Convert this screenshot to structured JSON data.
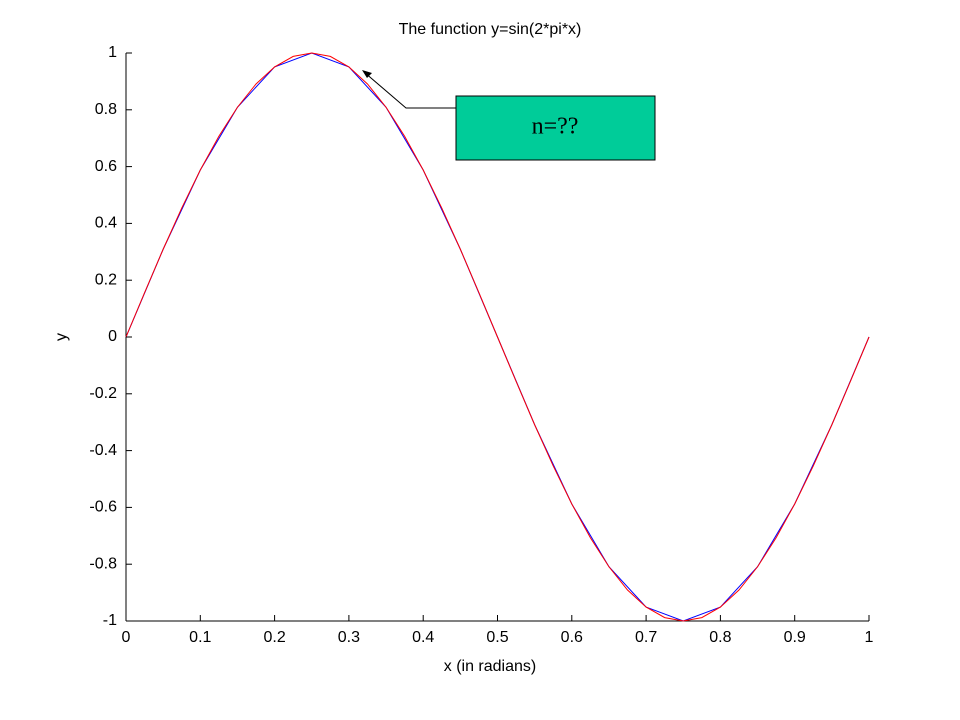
{
  "chart_data": {
    "type": "line",
    "title": "The function y=sin(2*pi*x)",
    "x_label": "x (in radians)",
    "y_label": "y",
    "annotation": "n=??",
    "series": [
      {
        "color": "#0000ff",
        "x": [
          0,
          0.05,
          0.1,
          0.15,
          0.2,
          0.25,
          0.3,
          0.35,
          0.4,
          0.45,
          0.5,
          0.55,
          0.6,
          0.65,
          0.7,
          0.75,
          0.8,
          0.85,
          0.9,
          0.95,
          1
        ],
        "values": [
          0,
          0.309,
          0.588,
          0.809,
          0.951,
          1,
          0.951,
          0.809,
          0.588,
          0.309,
          0,
          -0.309,
          -0.588,
          -0.809,
          -0.951,
          -1,
          -0.951,
          -0.809,
          -0.588,
          -0.309,
          0
        ]
      },
      {
        "color": "#ff0000",
        "x": [
          0,
          0.025,
          0.05,
          0.075,
          0.1,
          0.125,
          0.15,
          0.175,
          0.2,
          0.225,
          0.25,
          0.275,
          0.3,
          0.325,
          0.35,
          0.375,
          0.4,
          0.425,
          0.45,
          0.475,
          0.5,
          0.525,
          0.55,
          0.575,
          0.6,
          0.625,
          0.65,
          0.675,
          0.7,
          0.725,
          0.75,
          0.775,
          0.8,
          0.825,
          0.85,
          0.875,
          0.9,
          0.925,
          0.95,
          0.975,
          1
        ],
        "values": [
          0,
          0.156,
          0.309,
          0.454,
          0.588,
          0.707,
          0.809,
          0.891,
          0.951,
          0.988,
          1,
          0.988,
          0.951,
          0.891,
          0.809,
          0.707,
          0.588,
          0.454,
          0.309,
          0.156,
          0,
          -0.156,
          -0.309,
          -0.454,
          -0.588,
          -0.707,
          -0.809,
          -0.891,
          -0.951,
          -0.988,
          -1,
          -0.988,
          -0.951,
          -0.891,
          -0.809,
          -0.707,
          -0.588,
          -0.454,
          -0.309,
          -0.156,
          0
        ]
      }
    ],
    "xlim": [
      0,
      1
    ],
    "xticks": [
      0,
      0.1,
      0.2,
      0.3,
      0.4,
      0.5,
      0.6,
      0.7,
      0.8,
      0.9,
      1
    ],
    "ylim": [
      -1,
      1
    ],
    "yticks": [
      -1,
      -0.8,
      -0.6,
      -0.4,
      -0.2,
      0,
      0.2,
      0.4,
      0.6,
      0.8,
      1
    ],
    "grid": false
  }
}
